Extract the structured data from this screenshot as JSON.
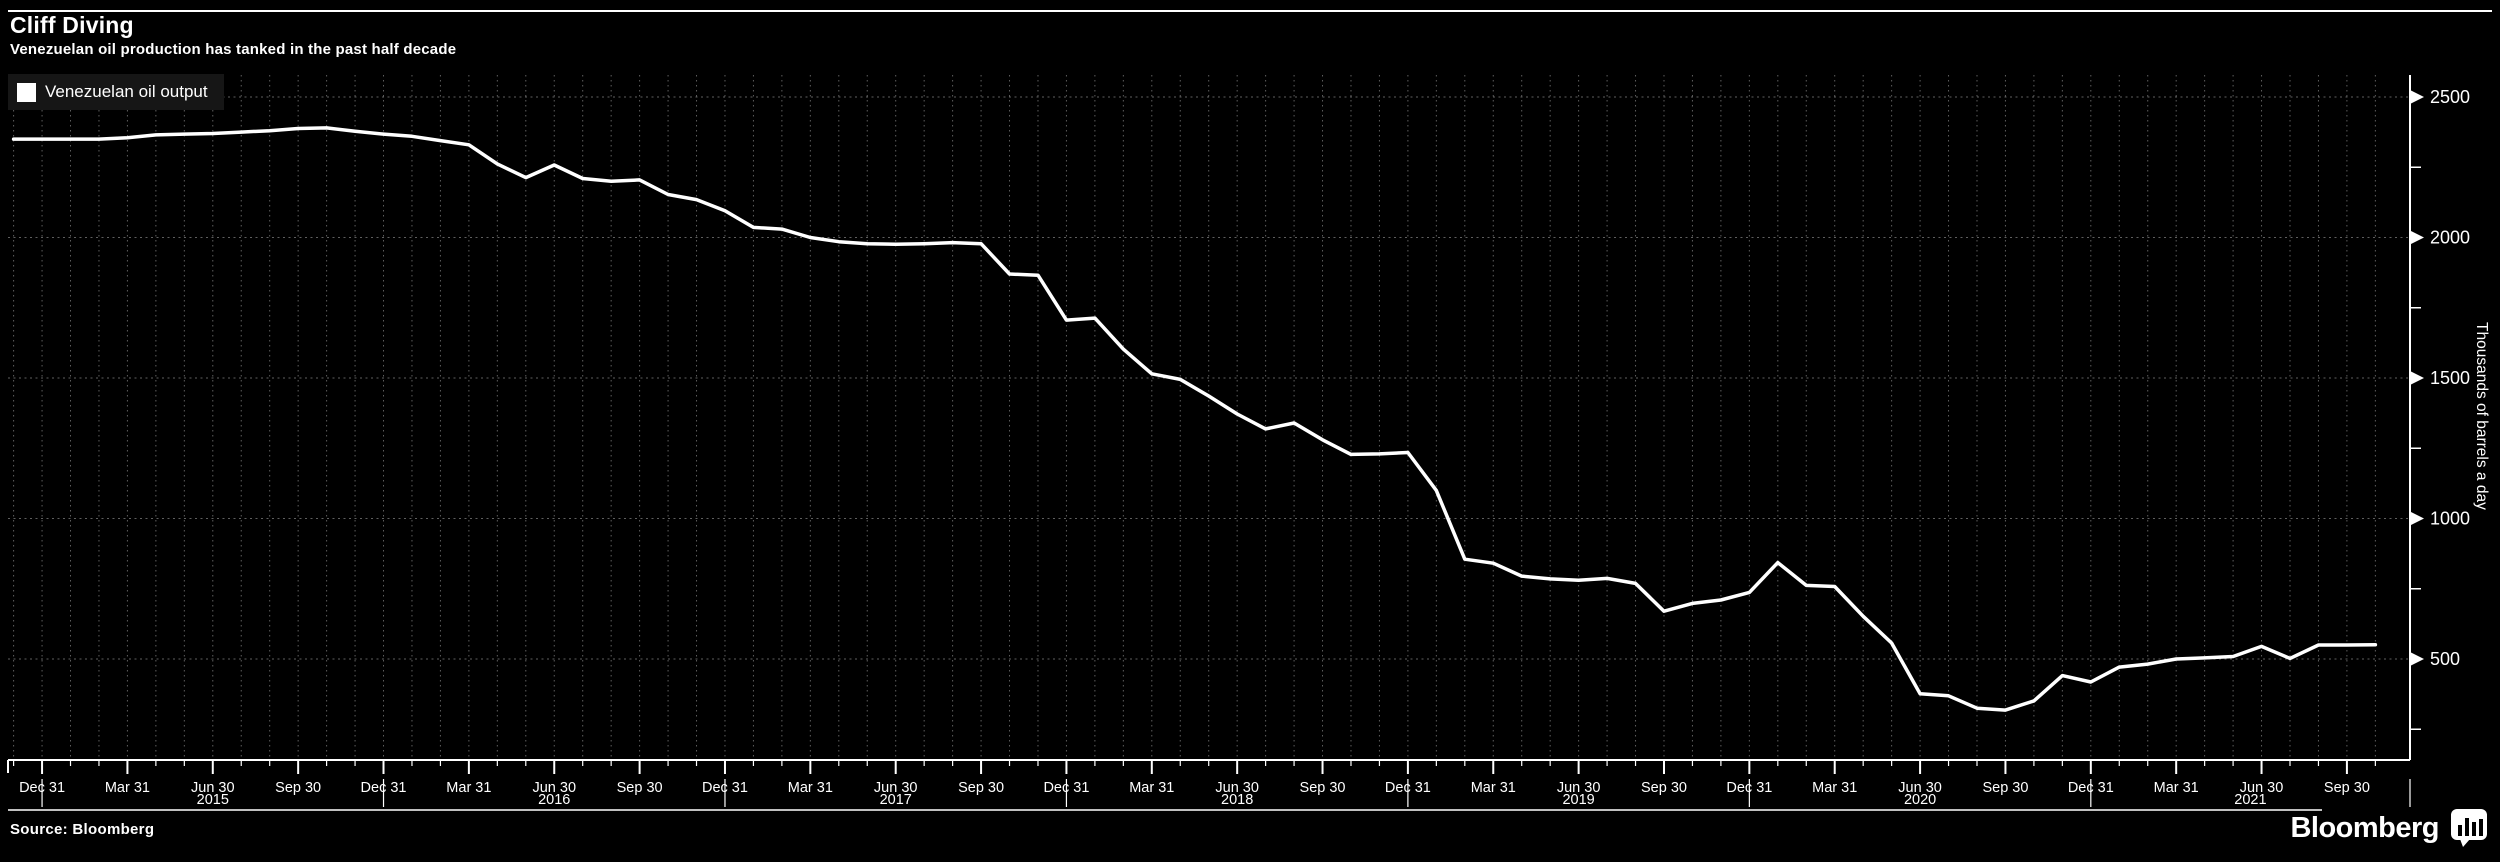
{
  "header": {
    "title": "Cliff Diving",
    "subtitle": "Venezuelan oil production has tanked in the past half decade"
  },
  "legend": {
    "label": "Venezuelan oil output",
    "swatch_color": "#ffffff",
    "position": "top-left"
  },
  "y_axis": {
    "label": "Thousands of barrels a day",
    "ticks": [
      2500,
      2000,
      1500,
      1000,
      500
    ],
    "minor_ticks": [
      2250,
      1750,
      1250,
      750,
      250
    ]
  },
  "x_axis": {
    "quarter_labels": [
      "Dec 31",
      "Mar 31",
      "Jun 30",
      "Sep 30"
    ],
    "years": [
      "2015",
      "2016",
      "2017",
      "2018",
      "2019",
      "2020",
      "2021"
    ]
  },
  "footer": {
    "source": "Source: Bloomberg",
    "brand": "Bloomberg"
  },
  "colors": {
    "background": "#000000",
    "line": "#ffffff",
    "grid": "#5f5f5f",
    "text": "#ffffff",
    "legend_bg": "#161616"
  },
  "chart_data": {
    "type": "line",
    "title": "Cliff Diving",
    "subtitle": "Venezuelan oil production has tanked in the past half decade",
    "ylabel": "Thousands of barrels a day",
    "ylim": [
      140,
      2500
    ],
    "grid": "dotted; vertical line per month, horizontal line per 500",
    "legend_position": "top-left",
    "x": [
      "Nov 2014",
      "Dec 2014",
      "Jan 2015",
      "Feb 2015",
      "Mar 2015",
      "Apr 2015",
      "May 2015",
      "Jun 2015",
      "Jul 2015",
      "Aug 2015",
      "Sep 2015",
      "Oct 2015",
      "Nov 2015",
      "Dec 2015",
      "Jan 2016",
      "Feb 2016",
      "Mar 2016",
      "Apr 2016",
      "May 2016",
      "Jun 2016",
      "Jul 2016",
      "Aug 2016",
      "Sep 2016",
      "Oct 2016",
      "Nov 2016",
      "Dec 2016",
      "Jan 2017",
      "Feb 2017",
      "Mar 2017",
      "Apr 2017",
      "May 2017",
      "Jun 2017",
      "Jul 2017",
      "Aug 2017",
      "Sep 2017",
      "Oct 2017",
      "Nov 2017",
      "Dec 2017",
      "Jan 2018",
      "Feb 2018",
      "Mar 2018",
      "Apr 2018",
      "May 2018",
      "Jun 2018",
      "Jul 2018",
      "Aug 2018",
      "Sep 2018",
      "Oct 2018",
      "Nov 2018",
      "Dec 2018",
      "Jan 2019",
      "Feb 2019",
      "Mar 2019",
      "Apr 2019",
      "May 2019",
      "Jun 2019",
      "Jul 2019",
      "Aug 2019",
      "Sep 2019",
      "Oct 2019",
      "Nov 2019",
      "Dec 2019",
      "Jan 2020",
      "Feb 2020",
      "Mar 2020",
      "Apr 2020",
      "May 2020",
      "Jun 2020",
      "Jul 2020",
      "Aug 2020",
      "Sep 2020",
      "Oct 2020",
      "Nov 2020",
      "Dec 2020",
      "Jan 2021",
      "Feb 2021",
      "Mar 2021",
      "Apr 2021",
      "May 2021",
      "Jun 2021",
      "Jul 2021",
      "Aug 2021",
      "Sep 2021",
      "Oct 2021"
    ],
    "series": [
      {
        "name": "Venezuelan oil output",
        "values": [
          2350,
          2350,
          2350,
          2350,
          2355,
          2365,
          2368,
          2370,
          2375,
          2380,
          2388,
          2390,
          2378,
          2368,
          2360,
          2345,
          2330,
          2262,
          2213,
          2258,
          2210,
          2200,
          2205,
          2153,
          2135,
          2095,
          2036,
          2030,
          2000,
          1985,
          1978,
          1976,
          1978,
          1982,
          1978,
          1870,
          1866,
          1706,
          1713,
          1603,
          1515,
          1495,
          1436,
          1372,
          1319,
          1340,
          1280,
          1228,
          1230,
          1235,
          1100,
          855,
          841,
          795,
          785,
          780,
          787,
          769,
          670,
          698,
          710,
          737,
          843,
          762,
          758,
          652,
          557,
          376,
          369,
          325,
          318,
          351,
          441,
          418,
          471,
          482,
          500,
          504,
          509,
          545,
          502,
          550,
          550,
          551
        ]
      }
    ]
  }
}
